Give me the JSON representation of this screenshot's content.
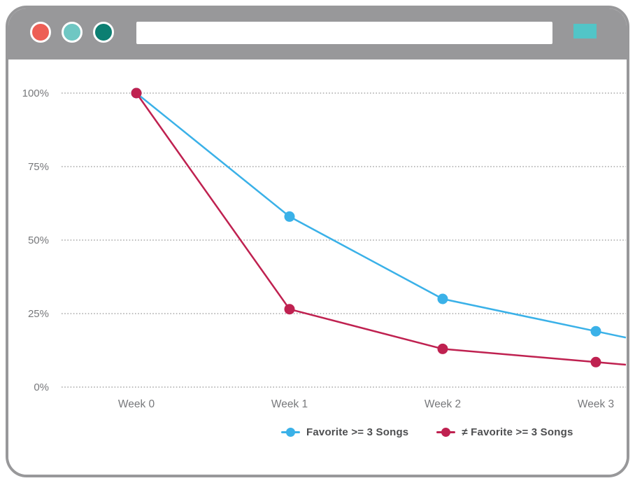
{
  "window": {
    "title": "",
    "chrome_color": "#98989a",
    "traffic_lights": [
      {
        "name": "close-button",
        "color": "#ed5e55"
      },
      {
        "name": "minimize-button",
        "color": "#6fc7c3"
      },
      {
        "name": "zoom-button",
        "color": "#0c7f72"
      }
    ],
    "address_bar": {
      "value": "",
      "placeholder": ""
    },
    "action_square_color": "#52c5c7"
  },
  "chart_data": {
    "type": "line",
    "x": [
      "Week 0",
      "Week 1",
      "Week 2",
      "Week 3"
    ],
    "series": [
      {
        "name": "Favorite >= 3 Songs",
        "color": "#3ab1e8",
        "values": [
          100,
          58,
          30,
          19
        ]
      },
      {
        "name": "≠ Favorite >= 3 Songs",
        "color": "#bf2150",
        "values": [
          100,
          26.5,
          13,
          8.5
        ]
      }
    ],
    "yticks": [
      {
        "label": "100%",
        "value": 100
      },
      {
        "label": "75%",
        "value": 75
      },
      {
        "label": "50%",
        "value": 50
      },
      {
        "label": "25%",
        "value": 25
      },
      {
        "label": "0%",
        "value": 0
      }
    ],
    "ylim": [
      0,
      100
    ],
    "grid": "horizontal-dotted",
    "gridline_color": "#a8a8a8",
    "axis_label_color": "#77787b",
    "legend_position": "bottom",
    "legend_text_color": "#4d4e50",
    "lines_extend_to_right_edge": true
  }
}
